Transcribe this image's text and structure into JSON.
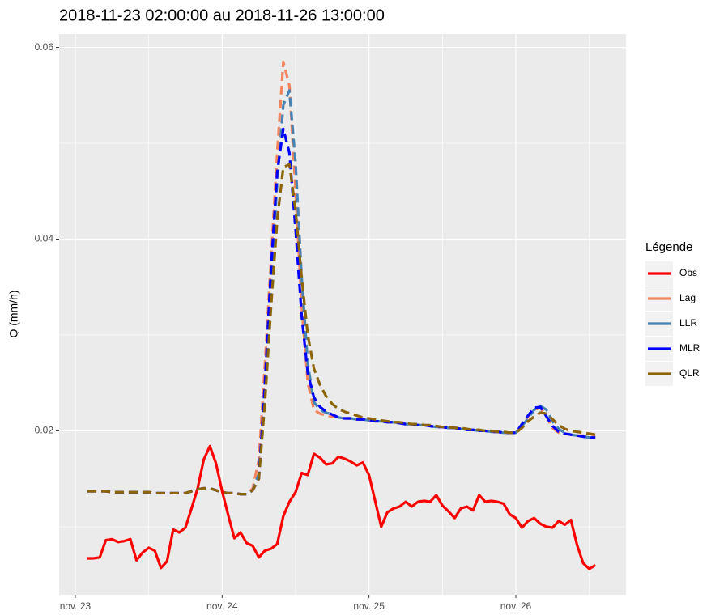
{
  "chart_data": {
    "type": "line",
    "title": "2018-11-23 02:00:00 au 2018-11-26 13:00:00",
    "y_label": "Q (mm/h)",
    "legend_title": "Légende",
    "legend_position": "right",
    "grid": true,
    "xlim": [
      22.89,
      26.75
    ],
    "xticks": [
      {
        "value": 23,
        "label": "nov. 23"
      },
      {
        "value": 24,
        "label": "nov. 24"
      },
      {
        "value": 25,
        "label": "nov. 25"
      },
      {
        "value": 26,
        "label": "nov. 26"
      }
    ],
    "ylim": [
      0.0029,
      0.0614
    ],
    "yticks": [
      0.02,
      0.04,
      0.06
    ],
    "x": [
      23.0833,
      23.125,
      23.1667,
      23.2083,
      23.25,
      23.2917,
      23.3333,
      23.375,
      23.4167,
      23.4583,
      23.5,
      23.5417,
      23.5833,
      23.625,
      23.6667,
      23.7083,
      23.75,
      23.7917,
      23.8333,
      23.875,
      23.9167,
      23.9583,
      24,
      24.0417,
      24.0833,
      24.125,
      24.1667,
      24.2083,
      24.25,
      24.2917,
      24.3333,
      24.375,
      24.4167,
      24.4583,
      24.5,
      24.5417,
      24.5833,
      24.625,
      24.6667,
      24.7083,
      24.75,
      24.7917,
      24.8333,
      24.875,
      24.9167,
      24.9583,
      25,
      25.0417,
      25.0833,
      25.125,
      25.1667,
      25.2083,
      25.25,
      25.2917,
      25.3333,
      25.375,
      25.4167,
      25.4583,
      25.5,
      25.5417,
      25.5833,
      25.625,
      25.6667,
      25.7083,
      25.75,
      25.7917,
      25.8333,
      25.875,
      25.9167,
      25.9583,
      26,
      26.0417,
      26.0833,
      26.125,
      26.1667,
      26.2083,
      26.25,
      26.2917,
      26.3333,
      26.375,
      26.4167,
      26.4583,
      26.5,
      26.5417
    ],
    "series": [
      {
        "name": "Obs",
        "color": "#ff0000",
        "linetype": "solid",
        "values": [
          0.0067,
          0.0067,
          0.0068,
          0.0086,
          0.0087,
          0.0084,
          0.0085,
          0.0087,
          0.0065,
          0.0073,
          0.0078,
          0.0075,
          0.0057,
          0.0064,
          0.0097,
          0.0094,
          0.0099,
          0.0119,
          0.014,
          0.017,
          0.0184,
          0.0166,
          0.0137,
          0.0112,
          0.0088,
          0.0094,
          0.0083,
          0.008,
          0.0068,
          0.0075,
          0.0077,
          0.0082,
          0.0111,
          0.0126,
          0.0136,
          0.0156,
          0.0154,
          0.0176,
          0.0172,
          0.0165,
          0.0166,
          0.0173,
          0.0171,
          0.0168,
          0.0164,
          0.0167,
          0.0154,
          0.0127,
          0.01,
          0.0115,
          0.0119,
          0.0121,
          0.0126,
          0.0121,
          0.0126,
          0.0127,
          0.0126,
          0.0133,
          0.0122,
          0.0116,
          0.0109,
          0.0119,
          0.0121,
          0.0117,
          0.0133,
          0.0126,
          0.0127,
          0.0126,
          0.0124,
          0.0113,
          0.0109,
          0.0099,
          0.0106,
          0.0109,
          0.0103,
          0.01,
          0.0099,
          0.0106,
          0.0102,
          0.0107,
          0.0081,
          0.0062,
          0.0056,
          0.006
        ]
      },
      {
        "name": "Lag",
        "color": "#f4845c",
        "linetype": "dashed",
        "values": [
          0.0137,
          0.0137,
          0.0137,
          0.0137,
          0.0136,
          0.0136,
          0.0136,
          0.0136,
          0.0136,
          0.0136,
          0.0136,
          0.0135,
          0.0135,
          0.0135,
          0.0135,
          0.0135,
          0.0135,
          0.0137,
          0.0139,
          0.014,
          0.014,
          0.0138,
          0.0136,
          0.0135,
          0.0135,
          0.0134,
          0.0134,
          0.014,
          0.017,
          0.027,
          0.038,
          0.049,
          0.0585,
          0.056,
          0.045,
          0.033,
          0.025,
          0.0222,
          0.0218,
          0.0216,
          0.0215,
          0.0214,
          0.0213,
          0.0213,
          0.0212,
          0.0212,
          0.0211,
          0.021,
          0.021,
          0.0209,
          0.0209,
          0.0208,
          0.0207,
          0.0207,
          0.0206,
          0.0206,
          0.0205,
          0.0204,
          0.0204,
          0.0203,
          0.0203,
          0.0202,
          0.0201,
          0.0201,
          0.02,
          0.02,
          0.0199,
          0.0199,
          0.0198,
          0.0198,
          0.0198,
          0.0205,
          0.0215,
          0.0222,
          0.0224,
          0.0215,
          0.0203,
          0.0198,
          0.0197,
          0.0196,
          0.0195,
          0.0195,
          0.0194,
          0.0194
        ]
      },
      {
        "name": "LLR",
        "color": "#4682b4",
        "linetype": "dashed",
        "values": [
          0.0137,
          0.0137,
          0.0137,
          0.0137,
          0.0136,
          0.0136,
          0.0136,
          0.0136,
          0.0136,
          0.0136,
          0.0136,
          0.0135,
          0.0135,
          0.0135,
          0.0135,
          0.0135,
          0.0135,
          0.0137,
          0.0139,
          0.014,
          0.014,
          0.0138,
          0.0136,
          0.0135,
          0.0135,
          0.0134,
          0.0134,
          0.0138,
          0.0155,
          0.024,
          0.035,
          0.046,
          0.054,
          0.0555,
          0.048,
          0.036,
          0.027,
          0.023,
          0.0222,
          0.0219,
          0.0217,
          0.0214,
          0.0213,
          0.0213,
          0.0212,
          0.0212,
          0.0211,
          0.021,
          0.021,
          0.0209,
          0.0209,
          0.0208,
          0.0207,
          0.0207,
          0.0206,
          0.0206,
          0.0205,
          0.0204,
          0.0204,
          0.0203,
          0.0203,
          0.0202,
          0.0201,
          0.0201,
          0.02,
          0.02,
          0.0199,
          0.0199,
          0.0198,
          0.0198,
          0.0198,
          0.0205,
          0.0213,
          0.0222,
          0.0226,
          0.0222,
          0.021,
          0.0202,
          0.0198,
          0.0196,
          0.0195,
          0.0194,
          0.0193,
          0.0193
        ]
      },
      {
        "name": "MLR",
        "color": "#0000ff",
        "linetype": "dashed",
        "values": [
          0.0137,
          0.0137,
          0.0137,
          0.0137,
          0.0136,
          0.0136,
          0.0136,
          0.0136,
          0.0136,
          0.0136,
          0.0136,
          0.0135,
          0.0135,
          0.0135,
          0.0135,
          0.0135,
          0.0135,
          0.0137,
          0.0139,
          0.014,
          0.014,
          0.0138,
          0.0136,
          0.0135,
          0.0135,
          0.0134,
          0.0134,
          0.0138,
          0.015,
          0.025,
          0.037,
          0.047,
          0.0515,
          0.049,
          0.041,
          0.032,
          0.026,
          0.0235,
          0.0225,
          0.022,
          0.0217,
          0.0214,
          0.0213,
          0.0213,
          0.0212,
          0.0212,
          0.0211,
          0.021,
          0.021,
          0.0209,
          0.0209,
          0.0208,
          0.0207,
          0.0207,
          0.0206,
          0.0206,
          0.0205,
          0.0204,
          0.0204,
          0.0203,
          0.0203,
          0.0202,
          0.0201,
          0.0201,
          0.02,
          0.02,
          0.0199,
          0.0199,
          0.0198,
          0.0198,
          0.0198,
          0.0207,
          0.0216,
          0.0224,
          0.0225,
          0.0215,
          0.0205,
          0.0199,
          0.0197,
          0.0196,
          0.0195,
          0.0194,
          0.0193,
          0.0193
        ]
      },
      {
        "name": "QLR",
        "color": "#8b6508",
        "linetype": "dashed",
        "values": [
          0.0137,
          0.0137,
          0.0137,
          0.0137,
          0.0136,
          0.0136,
          0.0136,
          0.0136,
          0.0136,
          0.0136,
          0.0136,
          0.0135,
          0.0135,
          0.0135,
          0.0135,
          0.0135,
          0.0135,
          0.0137,
          0.0139,
          0.014,
          0.014,
          0.0138,
          0.0136,
          0.0135,
          0.0135,
          0.0134,
          0.0134,
          0.0138,
          0.015,
          0.023,
          0.033,
          0.042,
          0.0475,
          0.0478,
          0.043,
          0.036,
          0.03,
          0.0265,
          0.0248,
          0.0236,
          0.0228,
          0.0223,
          0.022,
          0.0218,
          0.0216,
          0.0214,
          0.0213,
          0.0212,
          0.0211,
          0.021,
          0.0209,
          0.0209,
          0.0208,
          0.0207,
          0.0207,
          0.0206,
          0.0206,
          0.0205,
          0.0204,
          0.0204,
          0.0203,
          0.0203,
          0.0202,
          0.0201,
          0.0201,
          0.02,
          0.02,
          0.0199,
          0.0199,
          0.0198,
          0.0198,
          0.0203,
          0.021,
          0.0215,
          0.0219,
          0.0218,
          0.0212,
          0.0206,
          0.0202,
          0.02,
          0.0199,
          0.0198,
          0.0197,
          0.0196
        ]
      }
    ]
  }
}
